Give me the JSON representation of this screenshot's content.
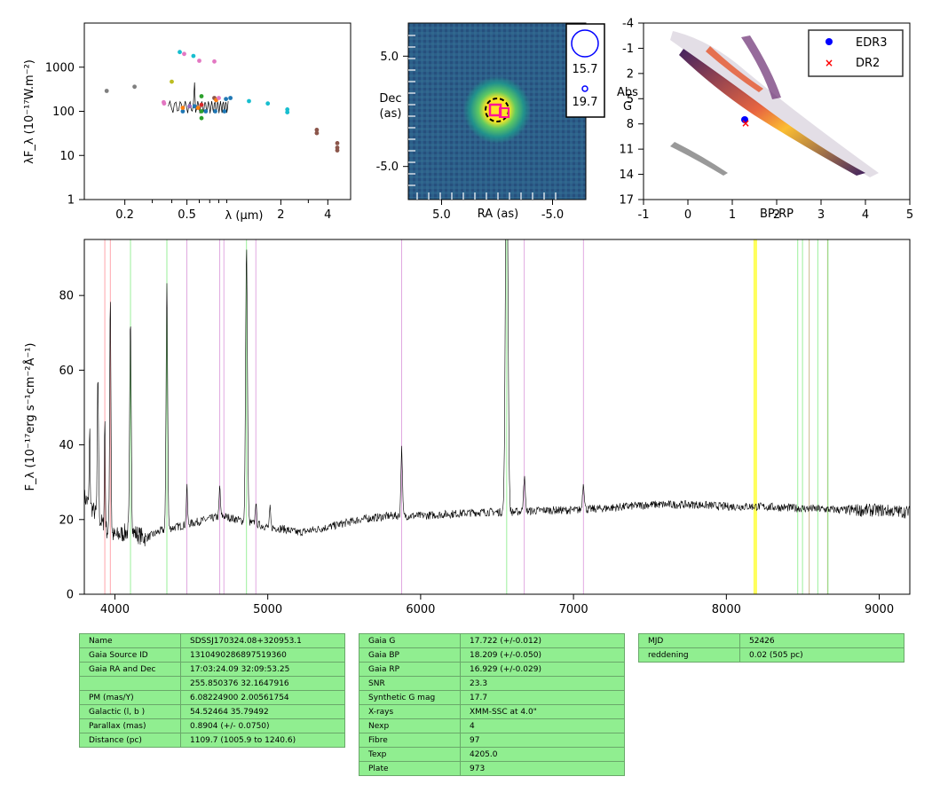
{
  "chart_data": [
    {
      "type": "scatter",
      "id": "sed",
      "xlabel": "λ (μm)",
      "ylabel": "λF_λ (10⁻¹⁷W.m⁻²)",
      "xscale": "log",
      "yscale": "log",
      "xlim": [
        0.11,
        5.6
      ],
      "ylim": [
        1,
        10000
      ],
      "xticks": [
        {
          "v": 0.2,
          "t": "0.2"
        },
        {
          "v": 0.5,
          "t": "0.5"
        },
        {
          "v": 2,
          "t": "2"
        },
        {
          "v": 4,
          "t": "4"
        }
      ],
      "yticks": [
        {
          "v": 1,
          "t": "1"
        },
        {
          "v": 10,
          "t": "10"
        },
        {
          "v": 100,
          "t": "100"
        },
        {
          "v": 1000,
          "t": "1000"
        }
      ],
      "points": [
        {
          "x": 0.153,
          "y": 290,
          "c": "#7f7f7f"
        },
        {
          "x": 0.231,
          "y": 360,
          "c": "#7f7f7f"
        },
        {
          "x": 0.355,
          "y": 160,
          "c": "#e377c2"
        },
        {
          "x": 0.357,
          "y": 150,
          "c": "#e377c2"
        },
        {
          "x": 0.4,
          "y": 470,
          "c": "#bcbd22"
        },
        {
          "x": 0.45,
          "y": 2200,
          "c": "#17becf"
        },
        {
          "x": 0.48,
          "y": 2000,
          "c": "#e377c2"
        },
        {
          "x": 0.47,
          "y": 100,
          "c": "#1f77b4"
        },
        {
          "x": 0.47,
          "y": 120,
          "c": "#ff7f0e"
        },
        {
          "x": 0.52,
          "y": 130,
          "c": "#9467bd"
        },
        {
          "x": 0.55,
          "y": 1800,
          "c": "#17becf"
        },
        {
          "x": 0.56,
          "y": 130,
          "c": "#1f77b4"
        },
        {
          "x": 0.59,
          "y": 120,
          "c": "#ff7f0e"
        },
        {
          "x": 0.6,
          "y": 1400,
          "c": "#e377c2"
        },
        {
          "x": 0.62,
          "y": 220,
          "c": "#2ca02c"
        },
        {
          "x": 0.62,
          "y": 100,
          "c": "#2ca02c"
        },
        {
          "x": 0.62,
          "y": 70,
          "c": "#2ca02c"
        },
        {
          "x": 0.62,
          "y": 140,
          "c": "#d62728"
        },
        {
          "x": 0.66,
          "y": 100,
          "c": "#1f77b4"
        },
        {
          "x": 0.75,
          "y": 1350,
          "c": "#e377c2"
        },
        {
          "x": 0.75,
          "y": 200,
          "c": "#8c564b"
        },
        {
          "x": 0.76,
          "y": 100,
          "c": "#1f77b4"
        },
        {
          "x": 0.77,
          "y": 180,
          "c": "#ff7f0e"
        },
        {
          "x": 0.8,
          "y": 200,
          "c": "#e377c2"
        },
        {
          "x": 0.87,
          "y": 100,
          "c": "#1f77b4"
        },
        {
          "x": 0.89,
          "y": 190,
          "c": "#1f77b4"
        },
        {
          "x": 0.95,
          "y": 200,
          "c": "#1f77b4"
        },
        {
          "x": 1.25,
          "y": 170,
          "c": "#17becf"
        },
        {
          "x": 1.65,
          "y": 150,
          "c": "#17becf"
        },
        {
          "x": 2.2,
          "y": 110,
          "c": "#17becf"
        },
        {
          "x": 2.2,
          "y": 95,
          "c": "#17becf"
        },
        {
          "x": 3.4,
          "y": 38,
          "c": "#8c564b"
        },
        {
          "x": 3.4,
          "y": 32,
          "c": "#8c564b"
        },
        {
          "x": 4.6,
          "y": 19,
          "c": "#8c564b"
        },
        {
          "x": 4.6,
          "y": 15,
          "c": "#8c564b"
        },
        {
          "x": 4.6,
          "y": 13,
          "c": "#8c564b"
        }
      ]
    },
    {
      "type": "heatmap",
      "id": "image",
      "xlabel": "RA (as)",
      "ylabel": "Dec\n(as)",
      "xlim": [
        8,
        -8
      ],
      "ylim": [
        -8,
        8
      ],
      "xticks": [
        {
          "v": 5,
          "t": "5.0"
        },
        {
          "v": -5,
          "t": "-5.0"
        }
      ],
      "yticks": [
        {
          "v": 5,
          "t": "5.0"
        },
        {
          "v": -5,
          "t": "-5.0"
        }
      ],
      "legend": [
        {
          "label": "15.7"
        },
        {
          "label": "19.7"
        }
      ]
    },
    {
      "type": "scatter",
      "id": "hrd",
      "xlabel": "BP-RP",
      "ylabel": "Abs\nG",
      "xlim": [
        -1,
        5
      ],
      "ylim": [
        17,
        -4
      ],
      "xticks": [
        {
          "v": -1,
          "t": "-1"
        },
        {
          "v": 0,
          "t": "0"
        },
        {
          "v": 1,
          "t": "1"
        },
        {
          "v": 2,
          "t": "2"
        },
        {
          "v": 3,
          "t": "3"
        },
        {
          "v": 4,
          "t": "4"
        },
        {
          "v": 5,
          "t": "5"
        }
      ],
      "yticks": [
        {
          "v": -4,
          "t": "-4"
        },
        {
          "v": -1,
          "t": "-1"
        },
        {
          "v": 2,
          "t": "2"
        },
        {
          "v": 5,
          "t": "5"
        },
        {
          "v": 8,
          "t": "8"
        },
        {
          "v": 11,
          "t": "11"
        },
        {
          "v": 14,
          "t": "14"
        },
        {
          "v": 17,
          "t": "17"
        }
      ],
      "legend": [
        {
          "label": "EDR3",
          "color": "#0000ff",
          "marker": "circle"
        },
        {
          "label": "DR2",
          "color": "#ff0000",
          "marker": "x"
        }
      ],
      "legend_position": "top-right",
      "points": [
        {
          "name": "EDR3",
          "x": 1.28,
          "y": 7.5
        },
        {
          "name": "DR2",
          "x": 1.3,
          "y": 7.9
        }
      ]
    },
    {
      "type": "line",
      "id": "spectrum",
      "xlabel": "",
      "ylabel": "F_λ (10⁻¹⁷erg s⁻¹cm⁻²Å⁻¹)",
      "xlim": [
        3800,
        9200
      ],
      "ylim": [
        0,
        95
      ],
      "xticks": [
        {
          "v": 4000,
          "t": "4000"
        },
        {
          "v": 5000,
          "t": "5000"
        },
        {
          "v": 6000,
          "t": "6000"
        },
        {
          "v": 7000,
          "t": "7000"
        },
        {
          "v": 8000,
          "t": "8000"
        },
        {
          "v": 9000,
          "t": "9000"
        }
      ],
      "yticks": [
        {
          "v": 0,
          "t": "0"
        },
        {
          "v": 20,
          "t": "20"
        },
        {
          "v": 40,
          "t": "40"
        },
        {
          "v": 60,
          "t": "60"
        },
        {
          "v": 80,
          "t": "80"
        }
      ],
      "continuum": [
        [
          3800,
          26
        ],
        [
          3850,
          23
        ],
        [
          3900,
          20
        ],
        [
          3950,
          17
        ],
        [
          4000,
          15.5
        ],
        [
          4100,
          17
        ],
        [
          4200,
          15
        ],
        [
          4300,
          17
        ],
        [
          4400,
          18
        ],
        [
          4500,
          19
        ],
        [
          4600,
          20
        ],
        [
          4700,
          21
        ],
        [
          4800,
          20
        ],
        [
          4900,
          19
        ],
        [
          5000,
          18
        ],
        [
          5100,
          17.5
        ],
        [
          5200,
          16.5
        ],
        [
          5400,
          18
        ],
        [
          5600,
          20
        ],
        [
          5800,
          21
        ],
        [
          6000,
          21
        ],
        [
          6200,
          21.5
        ],
        [
          6400,
          22
        ],
        [
          6600,
          22
        ],
        [
          6800,
          22.5
        ],
        [
          7000,
          22.5
        ],
        [
          7200,
          23
        ],
        [
          7500,
          24
        ],
        [
          7800,
          24
        ],
        [
          8000,
          23.5
        ],
        [
          8200,
          23.5
        ],
        [
          8500,
          23
        ],
        [
          8800,
          22.5
        ],
        [
          9000,
          22.5
        ],
        [
          9200,
          22
        ]
      ],
      "emission_lines": [
        {
          "w": 3835,
          "h": 20,
          "s": 3
        },
        {
          "w": 3889,
          "h": 38,
          "s": 4
        },
        {
          "w": 3934,
          "h": 30,
          "s": 3
        },
        {
          "w": 3970,
          "h": 65,
          "s": 4
        },
        {
          "w": 4102,
          "h": 57,
          "s": 5
        },
        {
          "w": 4340,
          "h": 66,
          "s": 5
        },
        {
          "w": 4471,
          "h": 10,
          "s": 4
        },
        {
          "w": 4686,
          "h": 8,
          "s": 4
        },
        {
          "w": 4861,
          "h": 73,
          "s": 6
        },
        {
          "w": 4922,
          "h": 6,
          "s": 4
        },
        {
          "w": 5015,
          "h": 5,
          "s": 4
        },
        {
          "w": 5876,
          "h": 18,
          "s": 5
        },
        {
          "w": 6563,
          "h": 108,
          "s": 8
        },
        {
          "w": 6678,
          "h": 9,
          "s": 6
        },
        {
          "w": 7065,
          "h": 7,
          "s": 6
        }
      ],
      "marker_lines": [
        {
          "w": 3934,
          "c": "#ff9aa2"
        },
        {
          "w": 3970,
          "c": "#ff9aa2"
        },
        {
          "w": 4102,
          "c": "#90ee90"
        },
        {
          "w": 4340,
          "c": "#90ee90"
        },
        {
          "w": 4471,
          "c": "#dda0dd"
        },
        {
          "w": 4686,
          "c": "#dda0dd"
        },
        {
          "w": 4713,
          "c": "#dda0dd"
        },
        {
          "w": 4861,
          "c": "#90ee90"
        },
        {
          "w": 4922,
          "c": "#dda0dd"
        },
        {
          "w": 5876,
          "c": "#dda0dd"
        },
        {
          "w": 6563,
          "c": "#90ee90"
        },
        {
          "w": 6678,
          "c": "#dda0dd"
        },
        {
          "w": 7065,
          "c": "#dda0dd"
        },
        {
          "w": 8183,
          "c": "#ffff33"
        },
        {
          "w": 8195,
          "c": "#ffff33"
        },
        {
          "w": 8498,
          "c": "#90ee90"
        },
        {
          "w": 8542,
          "c": "#c2b280"
        },
        {
          "w": 8598,
          "c": "#90ee90"
        },
        {
          "w": 8662,
          "c": "#c2b280"
        },
        {
          "w": 8467,
          "c": "#90ee90"
        },
        {
          "w": 8665,
          "c": "#90ee90"
        }
      ]
    }
  ],
  "tables": [
    {
      "rows": [
        [
          "Name",
          "SDSSJ170324.08+320953.1"
        ],
        [
          "Gaia Source ID",
          "1310490286897519360"
        ],
        [
          "Gaia RA and Dec",
          "17:03:24.09    32:09:53.25"
        ],
        [
          "",
          "255.850376    32.1647916"
        ],
        [
          "PM (mas/Y)",
          "6.08224900    2.00561754"
        ],
        [
          "Galactic (l, b )",
          "54.52464    35.79492"
        ],
        [
          "Parallax (mas)",
          "0.8904 (+/- 0.0750)"
        ],
        [
          "Distance (pc)",
          "1109.7 (1005.9 to 1240.6)"
        ]
      ]
    },
    {
      "rows": [
        [
          "Gaia G",
          "17.722 (+/-0.012)"
        ],
        [
          "Gaia BP",
          "18.209 (+/-0.050)"
        ],
        [
          "Gaia RP",
          "16.929 (+/-0.029)"
        ],
        [
          "SNR",
          "23.3"
        ],
        [
          "Synthetic G mag",
          "17.7"
        ],
        [
          "X-rays",
          "XMM-SSC at 4.0\""
        ],
        [
          "Nexp",
          "4"
        ],
        [
          "Fibre",
          "97"
        ],
        [
          "Texp",
          "4205.0"
        ],
        [
          "Plate",
          "973"
        ]
      ]
    },
    {
      "rows": [
        [
          "MJD",
          "52426"
        ],
        [
          "reddening",
          "0.02 (505 pc)"
        ]
      ]
    }
  ]
}
